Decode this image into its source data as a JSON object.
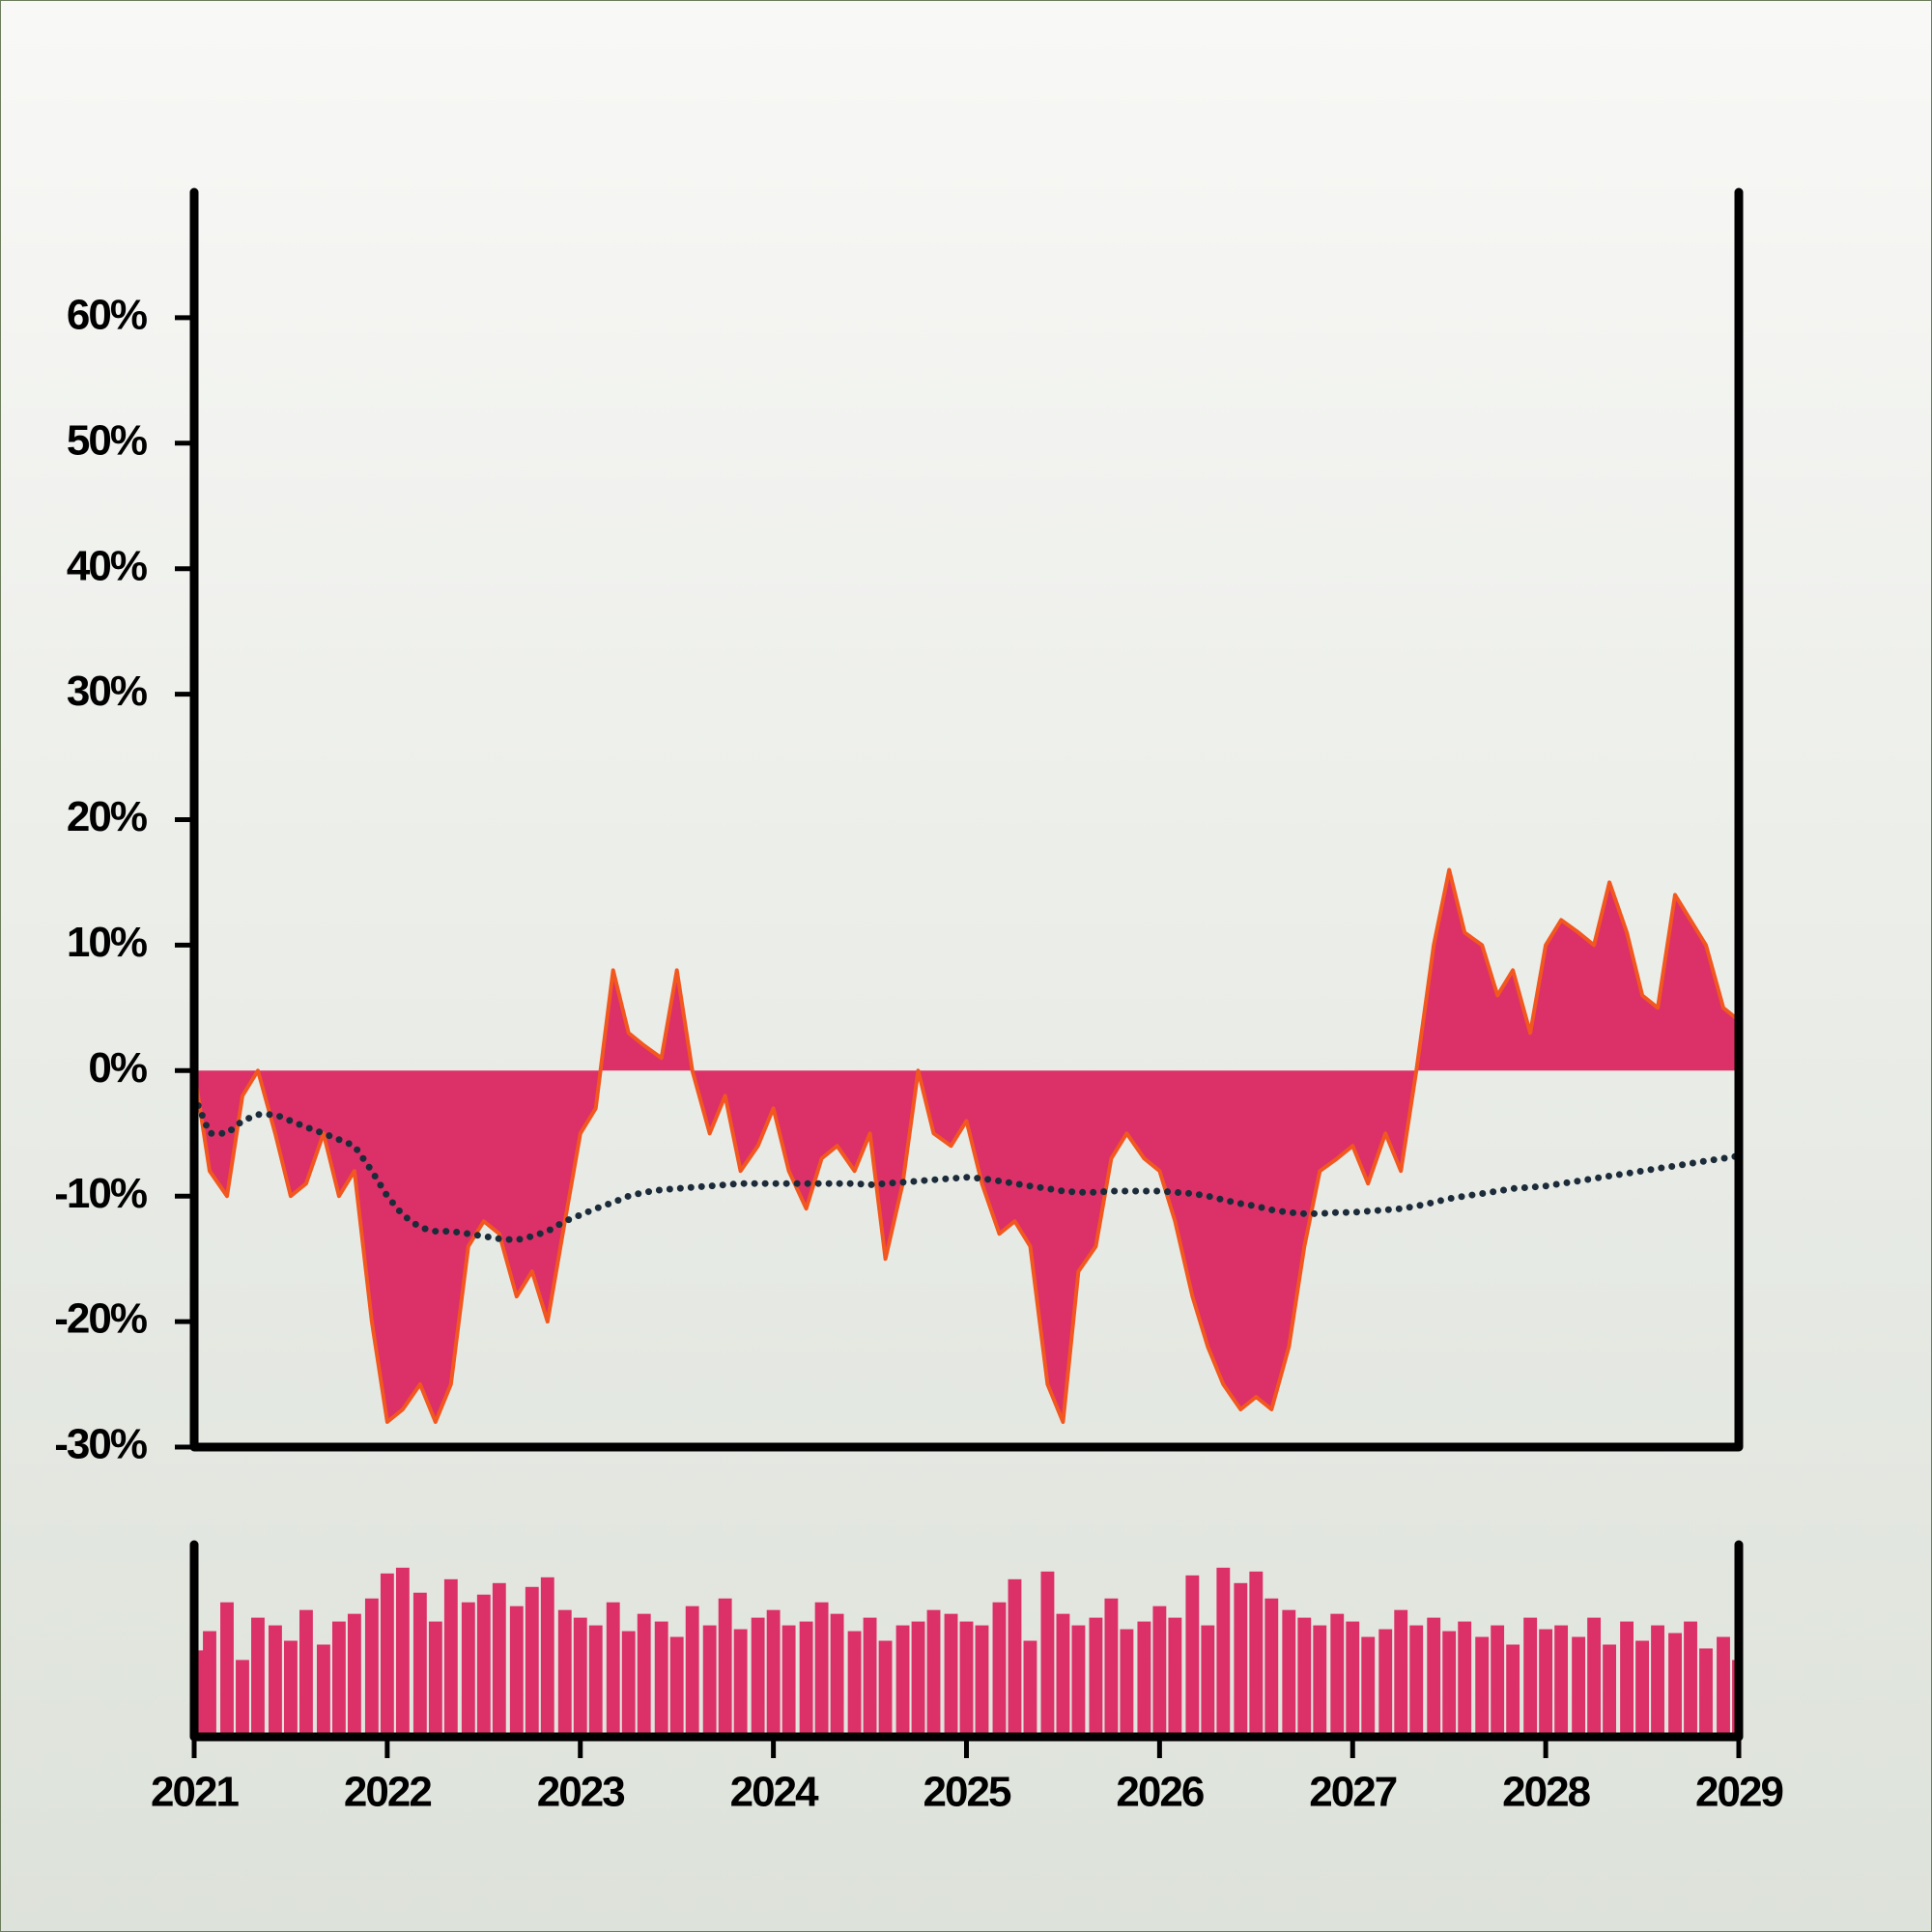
{
  "chart_data": [
    {
      "type": "area",
      "x": [
        2021.0,
        2021.08,
        2021.17,
        2021.25,
        2021.33,
        2021.42,
        2021.5,
        2021.58,
        2021.67,
        2021.75,
        2021.83,
        2021.92,
        2022.0,
        2022.08,
        2022.17,
        2022.25,
        2022.33,
        2022.42,
        2022.5,
        2022.58,
        2022.67,
        2022.75,
        2022.83,
        2022.92,
        2023.0,
        2023.08,
        2023.17,
        2023.25,
        2023.33,
        2023.42,
        2023.5,
        2023.58,
        2023.67,
        2023.75,
        2023.83,
        2023.92,
        2024.0,
        2024.08,
        2024.17,
        2024.25,
        2024.33,
        2024.42,
        2024.5,
        2024.58,
        2024.67,
        2024.75,
        2024.83,
        2024.92,
        2025.0,
        2025.08,
        2025.17,
        2025.25,
        2025.33,
        2025.42,
        2025.5,
        2025.58,
        2025.67,
        2025.75,
        2025.83,
        2025.92,
        2026.0,
        2026.08,
        2026.17,
        2026.25,
        2026.33,
        2026.42,
        2026.5,
        2026.58,
        2026.67,
        2026.75,
        2026.83,
        2026.92,
        2027.0,
        2027.08,
        2027.17,
        2027.25,
        2027.33,
        2027.42,
        2027.5,
        2027.58,
        2027.67,
        2027.75,
        2027.83,
        2027.92,
        2028.0,
        2028.08,
        2028.17,
        2028.25,
        2028.33,
        2028.42,
        2028.5,
        2028.58,
        2028.67,
        2028.75,
        2028.83,
        2028.92,
        2029.0
      ],
      "series": [
        {
          "color": "#dc3068",
          "line_color": "#f2571f",
          "values": [
            0,
            -8,
            -10,
            -2,
            0,
            -5,
            -10,
            -9,
            -5,
            -10,
            -8,
            -20,
            -28,
            -27,
            -25,
            -28,
            -25,
            -14,
            -12,
            -13,
            -18,
            -16,
            -20,
            -12,
            -5,
            -3,
            8,
            3,
            2,
            1,
            8,
            0,
            -5,
            -2,
            -8,
            -6,
            -3,
            -8,
            -11,
            -7,
            -6,
            -8,
            -5,
            -15,
            -9,
            0,
            -5,
            -6,
            -4,
            -9,
            -13,
            -12,
            -14,
            -25,
            -28,
            -16,
            -14,
            -7,
            -5,
            -7,
            -8,
            -12,
            -18,
            -22,
            -25,
            -27,
            -26,
            -27,
            -22,
            -14,
            -8,
            -7,
            -6,
            -9,
            -5,
            -8,
            0,
            10,
            16,
            11,
            10,
            6,
            8,
            3,
            10,
            12,
            11,
            10,
            15,
            11,
            6,
            5,
            14,
            12,
            10,
            5,
            4
          ]
        },
        {
          "color": "#1c2b3a",
          "style": "dotted",
          "values": [
            -2,
            -5,
            -5,
            -4,
            -3.5,
            -3.5,
            -4,
            -4.5,
            -5,
            -5.5,
            -6,
            -8,
            -10,
            -11.5,
            -12.5,
            -12.8,
            -12.8,
            -13,
            -13.2,
            -13.4,
            -13.5,
            -13.2,
            -12.8,
            -12,
            -11.5,
            -11,
            -10.5,
            -10,
            -9.7,
            -9.5,
            -9.4,
            -9.3,
            -9.2,
            -9.1,
            -9,
            -9,
            -9,
            -9,
            -9,
            -9,
            -9,
            -9,
            -9.1,
            -9,
            -8.9,
            -8.8,
            -8.7,
            -8.6,
            -8.5,
            -8.6,
            -8.8,
            -9,
            -9.2,
            -9.4,
            -9.6,
            -9.7,
            -9.7,
            -9.6,
            -9.6,
            -9.6,
            -9.6,
            -9.7,
            -9.8,
            -10,
            -10.3,
            -10.6,
            -10.8,
            -11.1,
            -11.3,
            -11.4,
            -11.4,
            -11.3,
            -11.3,
            -11.2,
            -11.1,
            -11,
            -10.8,
            -10.5,
            -10.2,
            -10,
            -9.8,
            -9.6,
            -9.4,
            -9.3,
            -9.2,
            -9,
            -8.8,
            -8.6,
            -8.4,
            -8.2,
            -8,
            -7.8,
            -7.6,
            -7.4,
            -7.2,
            -7,
            -6.8
          ]
        }
      ],
      "xlim": [
        2021,
        2029
      ],
      "ylim": [
        -30,
        70
      ],
      "yticks": [
        {
          "value": -30,
          "label": "-30%"
        },
        {
          "value": -20,
          "label": "-20%"
        },
        {
          "value": -10,
          "label": "-10%"
        },
        {
          "value": 0,
          "label": "0%"
        },
        {
          "value": 10,
          "label": "10%"
        },
        {
          "value": 20,
          "label": "20%"
        },
        {
          "value": 30,
          "label": "30%"
        },
        {
          "value": 40,
          "label": "40%"
        },
        {
          "value": 50,
          "label": "50%"
        },
        {
          "value": 60,
          "label": "60%"
        }
      ]
    },
    {
      "type": "bar",
      "x": [
        2021.0,
        2021.08,
        2021.17,
        2021.25,
        2021.33,
        2021.42,
        2021.5,
        2021.58,
        2021.67,
        2021.75,
        2021.83,
        2021.92,
        2022.0,
        2022.08,
        2022.17,
        2022.25,
        2022.33,
        2022.42,
        2022.5,
        2022.58,
        2022.67,
        2022.75,
        2022.83,
        2022.92,
        2023.0,
        2023.08,
        2023.17,
        2023.25,
        2023.33,
        2023.42,
        2023.5,
        2023.58,
        2023.67,
        2023.75,
        2023.83,
        2023.92,
        2024.0,
        2024.08,
        2024.17,
        2024.25,
        2024.33,
        2024.42,
        2024.5,
        2024.58,
        2024.67,
        2024.75,
        2024.83,
        2024.92,
        2025.0,
        2025.08,
        2025.17,
        2025.25,
        2025.33,
        2025.42,
        2025.5,
        2025.58,
        2025.67,
        2025.75,
        2025.83,
        2025.92,
        2026.0,
        2026.08,
        2026.17,
        2026.25,
        2026.33,
        2026.42,
        2026.5,
        2026.58,
        2026.67,
        2026.75,
        2026.83,
        2026.92,
        2027.0,
        2027.08,
        2027.17,
        2027.25,
        2027.33,
        2027.42,
        2027.5,
        2027.58,
        2027.67,
        2027.75,
        2027.83,
        2027.92,
        2028.0,
        2028.08,
        2028.17,
        2028.25,
        2028.33,
        2028.42,
        2028.5,
        2028.58,
        2028.67,
        2028.75,
        2028.83,
        2028.92,
        2029.0
      ],
      "values": [
        45,
        55,
        70,
        40,
        62,
        58,
        50,
        66,
        48,
        60,
        64,
        72,
        85,
        88,
        75,
        60,
        82,
        70,
        74,
        80,
        68,
        78,
        83,
        66,
        62,
        58,
        70,
        55,
        64,
        60,
        52,
        68,
        58,
        72,
        56,
        62,
        66,
        58,
        60,
        70,
        64,
        55,
        62,
        50,
        58,
        60,
        66,
        64,
        60,
        58,
        70,
        82,
        50,
        86,
        64,
        58,
        62,
        72,
        56,
        60,
        68,
        62,
        84,
        58,
        88,
        80,
        86,
        72,
        66,
        62,
        58,
        64,
        60,
        52,
        56,
        66,
        58,
        62,
        55,
        60,
        52,
        58,
        48,
        62,
        56,
        58,
        52,
        62,
        48,
        60,
        50,
        58,
        54,
        60,
        46,
        52,
        40
      ],
      "color": "#dc3068",
      "xlim": [
        2021,
        2029
      ],
      "ylim": [
        0,
        100
      ],
      "xticks": [
        2021,
        2022,
        2023,
        2024,
        2025,
        2026,
        2027,
        2028,
        2029
      ]
    }
  ]
}
